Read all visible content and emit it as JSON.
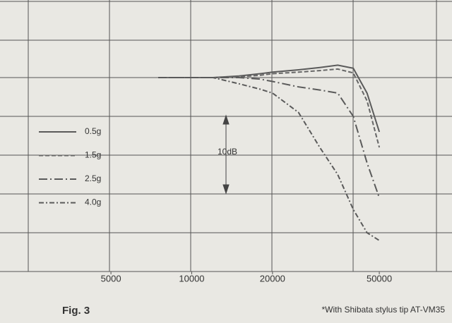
{
  "chart_data": {
    "type": "line",
    "xscale": "log",
    "x": [
      7500,
      10000,
      12000,
      15000,
      18000,
      20000,
      25000,
      30000,
      35000,
      40000,
      45000,
      50000
    ],
    "series": [
      {
        "name": "0.5g",
        "color": "#5a5a5a",
        "linestyle": "solid",
        "values": [
          0,
          0,
          0,
          0.2,
          0.5,
          0.7,
          1,
          1.3,
          1.6,
          1.2,
          -2,
          -7
        ]
      },
      {
        "name": "1.5g",
        "color": "#666666",
        "linestyle": "dashed",
        "values": [
          0,
          0,
          0,
          0.1,
          0.3,
          0.5,
          0.7,
          0.9,
          1.1,
          0.6,
          -3,
          -9
        ]
      },
      {
        "name": "2.5g",
        "color": "#5a5a5a",
        "linestyle": "longdashdot",
        "values": [
          0,
          0,
          0,
          0,
          -0.2,
          -0.5,
          -1.2,
          -1.6,
          -2,
          -5,
          -11,
          -15.5
        ]
      },
      {
        "name": "4.0g",
        "color": "#5a5a5a",
        "linestyle": "dashdot",
        "values": [
          0,
          0,
          0,
          -0.8,
          -1.5,
          -2,
          -4.5,
          -9,
          -12.5,
          -17,
          -20,
          -21
        ]
      }
    ],
    "xlim": [
      1930,
      93300
    ],
    "xticks": [
      5000,
      10000,
      20000,
      50000
    ],
    "ylim": [
      -25,
      10
    ],
    "annotation": "10dB",
    "caption": "Fig. 3",
    "footnote": "*With Shibata stylus tip AT-VM35"
  }
}
